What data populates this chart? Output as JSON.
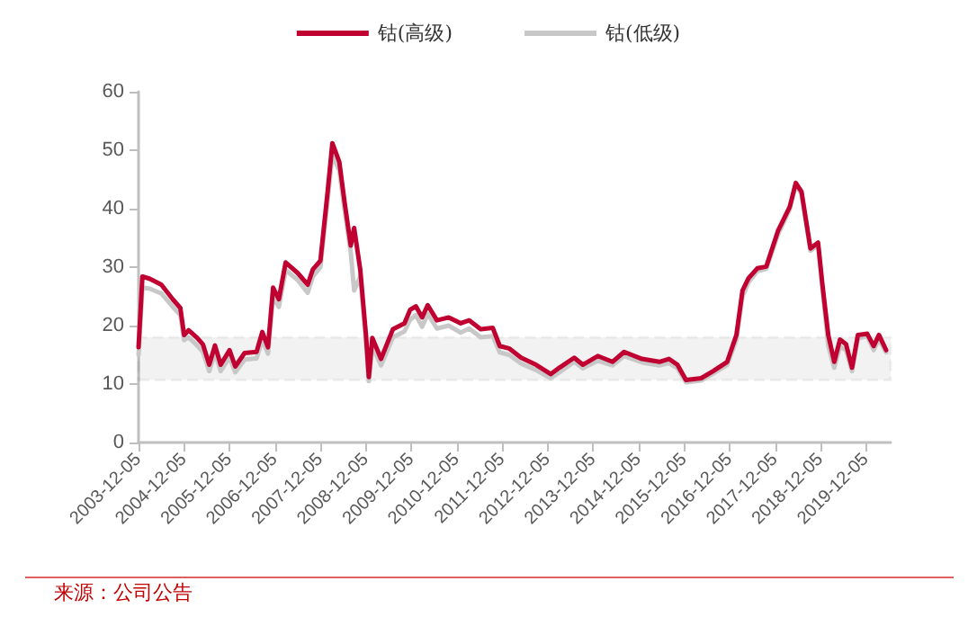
{
  "chart_data": {
    "type": "line",
    "x": [
      "2003-12-05",
      "2004-01-05",
      "2004-03-05",
      "2004-06-05",
      "2004-09-05",
      "2004-11-05",
      "2004-12-05",
      "2005-01-10",
      "2005-03-20",
      "2005-05-05",
      "2005-06-25",
      "2005-08-10",
      "2005-09-25",
      "2005-12-05",
      "2006-01-20",
      "2006-04-05",
      "2006-07-10",
      "2006-08-25",
      "2006-10-10",
      "2006-11-20",
      "2007-01-05",
      "2007-03-01",
      "2007-06-05",
      "2007-08-25",
      "2007-10-05",
      "2007-12-05",
      "2008-02-01",
      "2008-03-10",
      "2008-05-05",
      "2008-06-15",
      "2008-08-05",
      "2008-09-01",
      "2008-10-20",
      "2008-12-05",
      "2008-12-28",
      "2009-01-25",
      "2009-04-05",
      "2009-07-10",
      "2009-10-10",
      "2009-11-25",
      "2010-01-10",
      "2010-03-01",
      "2010-04-15",
      "2010-06-28",
      "2010-10-01",
      "2011-01-05",
      "2011-03-15",
      "2011-06-15",
      "2011-09-20",
      "2011-11-15",
      "2012-01-28",
      "2012-05-05",
      "2012-09-01",
      "2012-12-28",
      "2013-03-08",
      "2013-07-05",
      "2013-09-12",
      "2014-01-10",
      "2014-05-08",
      "2014-08-10",
      "2015-01-01",
      "2015-05-20",
      "2015-08-05",
      "2015-10-12",
      "2015-12-20",
      "2016-04-20",
      "2016-07-25",
      "2016-11-15",
      "2017-01-28",
      "2017-03-18",
      "2017-05-05",
      "2017-07-15",
      "2017-09-25",
      "2017-12-28",
      "2018-04-01",
      "2018-05-20",
      "2018-07-05",
      "2018-09-15",
      "2018-11-15",
      "2018-12-20",
      "2019-02-05",
      "2019-03-25",
      "2019-05-10",
      "2019-06-28",
      "2019-08-15",
      "2019-10-01",
      "2019-12-15",
      "2020-02-05",
      "2020-03-18",
      "2020-05-15"
    ],
    "series": [
      {
        "name": "钴(高级)",
        "color": "#c00030",
        "values": [
          16.3,
          28.4,
          28,
          27,
          24.5,
          23,
          18.4,
          19.2,
          17.9,
          16.8,
          13.3,
          16.6,
          13.3,
          15.8,
          13,
          15.3,
          15.5,
          18.9,
          16.3,
          26.5,
          24.5,
          30.8,
          29,
          27,
          29.6,
          31.1,
          42.9,
          51.2,
          48,
          41.3,
          33.7,
          36.7,
          29.6,
          18.4,
          11.2,
          17.9,
          14.3,
          19.4,
          20.4,
          22.7,
          23.3,
          21.4,
          23.5,
          20.9,
          21.4,
          20.4,
          20.9,
          19.4,
          19.6,
          16.5,
          16.1,
          14.5,
          13.3,
          11.7,
          12.8,
          14.5,
          13.3,
          14.8,
          13.8,
          15.5,
          14.3,
          13.8,
          14.3,
          13.3,
          10.7,
          11,
          12.2,
          13.8,
          18.4,
          26,
          28.1,
          29.8,
          30.1,
          36.2,
          40.3,
          44.4,
          42.9,
          33.2,
          34.2,
          27,
          18.4,
          13.8,
          17.6,
          16.8,
          12.8,
          18.4,
          18.6,
          16.5,
          18.4,
          15.8
        ]
      },
      {
        "name": "钴(低级)",
        "color": "#c8c8c8",
        "values": [
          15,
          26.5,
          26.3,
          25.5,
          23.2,
          21.8,
          17.5,
          18,
          16.6,
          15.5,
          12.2,
          15.3,
          12.2,
          14.6,
          12,
          14.2,
          14.4,
          17.6,
          15.2,
          25,
          23.2,
          29.5,
          27.8,
          25.6,
          28.4,
          30,
          41.5,
          49.2,
          46.5,
          40,
          32.5,
          26,
          28.4,
          17.2,
          10.5,
          16.5,
          13.2,
          18,
          19,
          21,
          21.8,
          19.8,
          22,
          19.5,
          20,
          18.8,
          19.5,
          18,
          18.2,
          15.4,
          15,
          13.5,
          12.4,
          11,
          12,
          13.8,
          12.7,
          14,
          13.2,
          14.8,
          13.7,
          13.2,
          13.6,
          12.7,
          10.3,
          10.6,
          11.8,
          13.3,
          17.6,
          25,
          27.4,
          29.3,
          29.7,
          35.6,
          39.9,
          44.1,
          42.5,
          32.8,
          33.8,
          26.4,
          16.5,
          12.8,
          16.4,
          15.8,
          12.2,
          17.8,
          18.2,
          15.8,
          17.7,
          15.4
        ]
      }
    ],
    "xlim": [
      "2003-12-05",
      "2020-06-20"
    ],
    "xticks": [
      "2003-12-05",
      "2004-12-05",
      "2005-12-05",
      "2006-12-05",
      "2007-12-05",
      "2008-12-05",
      "2009-12-05",
      "2010-12-05",
      "2011-12-05",
      "2012-12-05",
      "2013-12-05",
      "2014-12-05",
      "2015-12-05",
      "2016-12-05",
      "2017-12-05",
      "2018-12-05",
      "2019-12-05"
    ],
    "ylim": [
      0,
      60
    ],
    "yticks": [
      0,
      10,
      20,
      30,
      40,
      50,
      60
    ],
    "bands": [
      {
        "axis": "y",
        "from": 10.7,
        "to": 18,
        "color": "#000000"
      }
    ],
    "legend": "top",
    "grid": false,
    "marker": "none",
    "line_style": "solid",
    "annotations": [
      "来源：公司公告"
    ]
  }
}
